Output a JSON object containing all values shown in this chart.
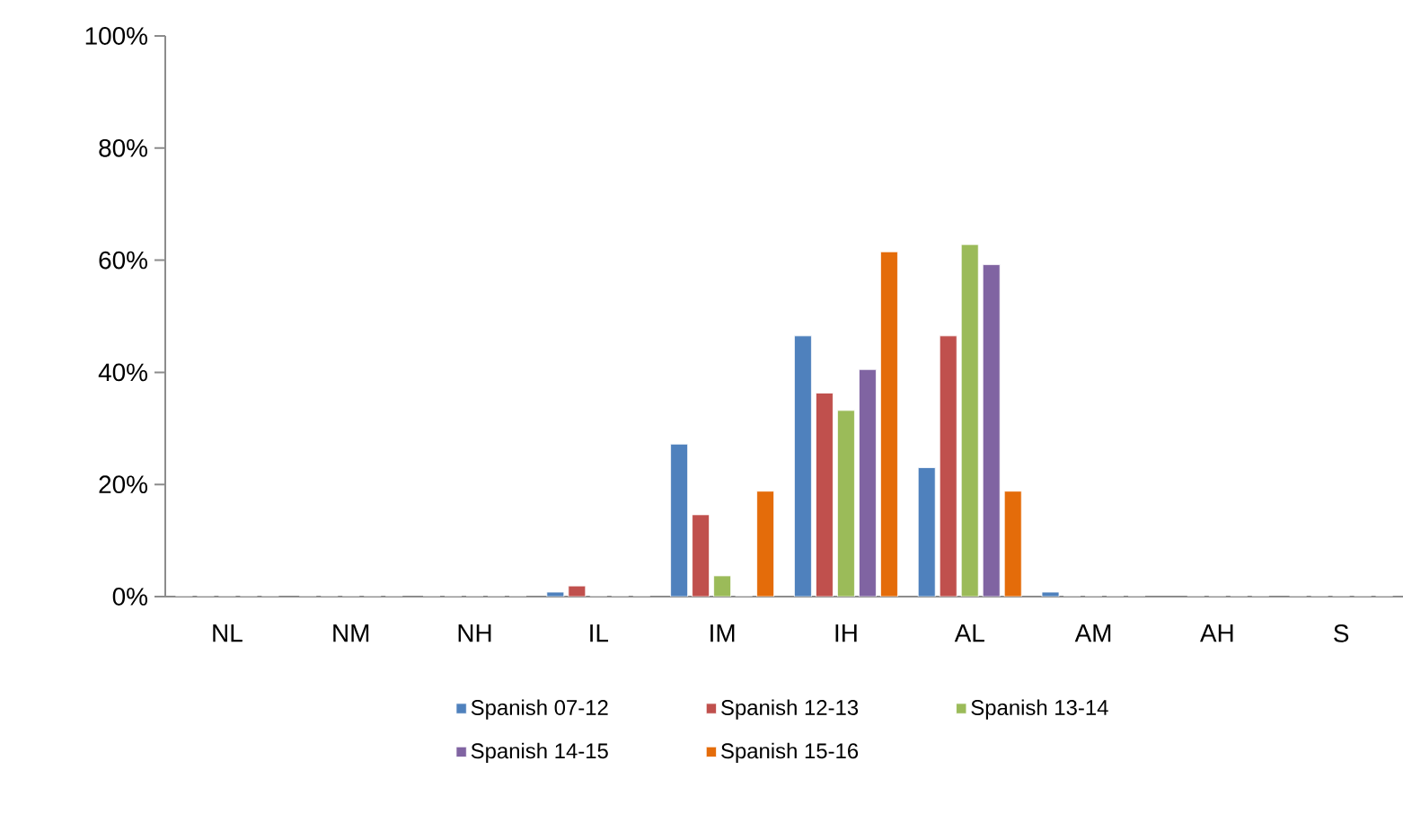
{
  "chart_data": {
    "type": "bar",
    "categories": [
      "NL",
      "NM",
      "NH",
      "IL",
      "IM",
      "IH",
      "AL",
      "AM",
      "AH",
      "S"
    ],
    "series": [
      {
        "name": "Spanish 07-12",
        "color": "#4f81bd",
        "values": [
          0,
          0,
          0,
          0.8,
          27.2,
          46.5,
          23.0,
          0.8,
          null,
          0
        ]
      },
      {
        "name": "Spanish 12-13",
        "color": "#c0504d",
        "values": [
          0,
          0,
          0,
          1.9,
          14.6,
          36.3,
          46.5,
          0,
          0,
          0
        ]
      },
      {
        "name": "Spanish 13-14",
        "color": "#9bbb59",
        "values": [
          0,
          0,
          0,
          0,
          3.7,
          33.2,
          62.8,
          0,
          0,
          0
        ]
      },
      {
        "name": "Spanish 14-15",
        "color": "#8064a2",
        "values": [
          0,
          0,
          0,
          0,
          0,
          40.5,
          59.2,
          0,
          0,
          0
        ]
      },
      {
        "name": "Spanish 15-16",
        "color": "#e46c0a",
        "values": [
          0,
          0,
          0,
          0,
          18.8,
          61.5,
          18.8,
          0,
          0,
          0
        ]
      }
    ],
    "ylim": [
      0,
      100
    ],
    "yticks": [
      {
        "value": 0,
        "label": "0%"
      },
      {
        "value": 20,
        "label": "20%"
      },
      {
        "value": 40,
        "label": "40%"
      },
      {
        "value": 60,
        "label": "60%"
      },
      {
        "value": 80,
        "label": "80%"
      },
      {
        "value": 100,
        "label": "100%"
      }
    ],
    "legend": "bottom",
    "grid": false
  }
}
